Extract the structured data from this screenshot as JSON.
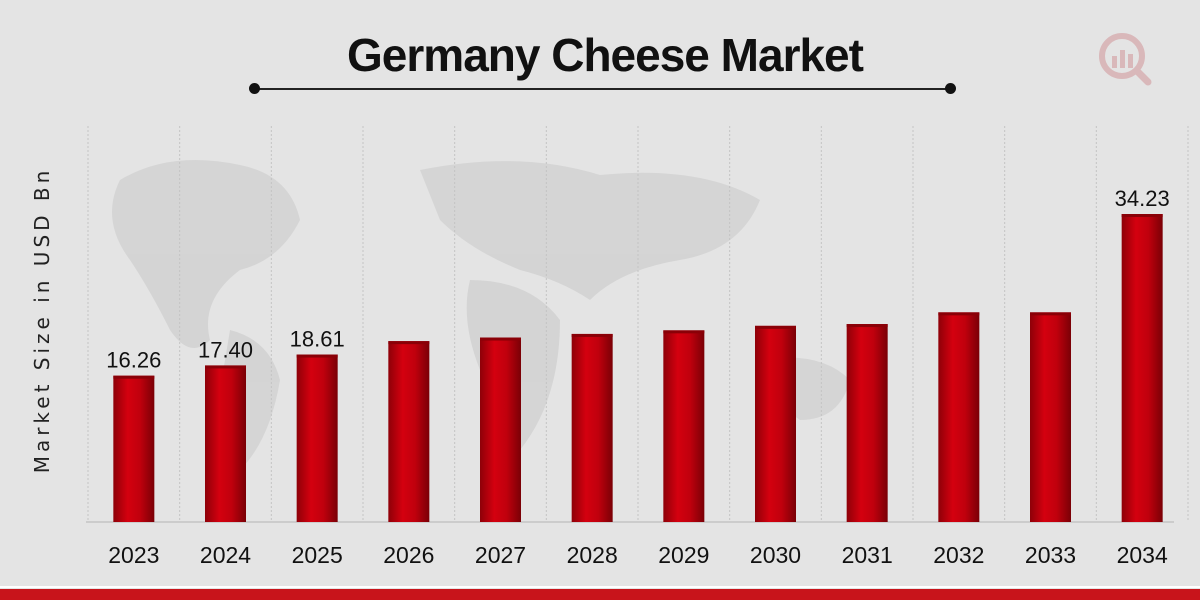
{
  "chart_data": {
    "type": "bar",
    "title": "Germany Cheese Market",
    "xlabel": "",
    "ylabel": "Market Size in USD Bn",
    "categories": [
      "2023",
      "2024",
      "2025",
      "2026",
      "2027",
      "2028",
      "2029",
      "2030",
      "2031",
      "2032",
      "2033",
      "2034"
    ],
    "values": [
      16.26,
      17.4,
      18.61,
      20.1,
      20.5,
      20.9,
      21.3,
      21.8,
      22.0,
      23.3,
      23.3,
      34.23
    ],
    "data_labels": [
      "16.26",
      "17.40",
      "18.61",
      "",
      "",
      "",
      "",
      "",
      "",
      "",
      "",
      "34.23"
    ],
    "ylim": [
      0,
      36
    ],
    "grid": "vertical dotted",
    "legend": "none",
    "bar_color": "#c3000c"
  },
  "colors": {
    "background": "#e4e4e4",
    "accent": "#c8141b"
  },
  "logo": {
    "icon": "bar-chart-magnifier-logo-icon"
  }
}
